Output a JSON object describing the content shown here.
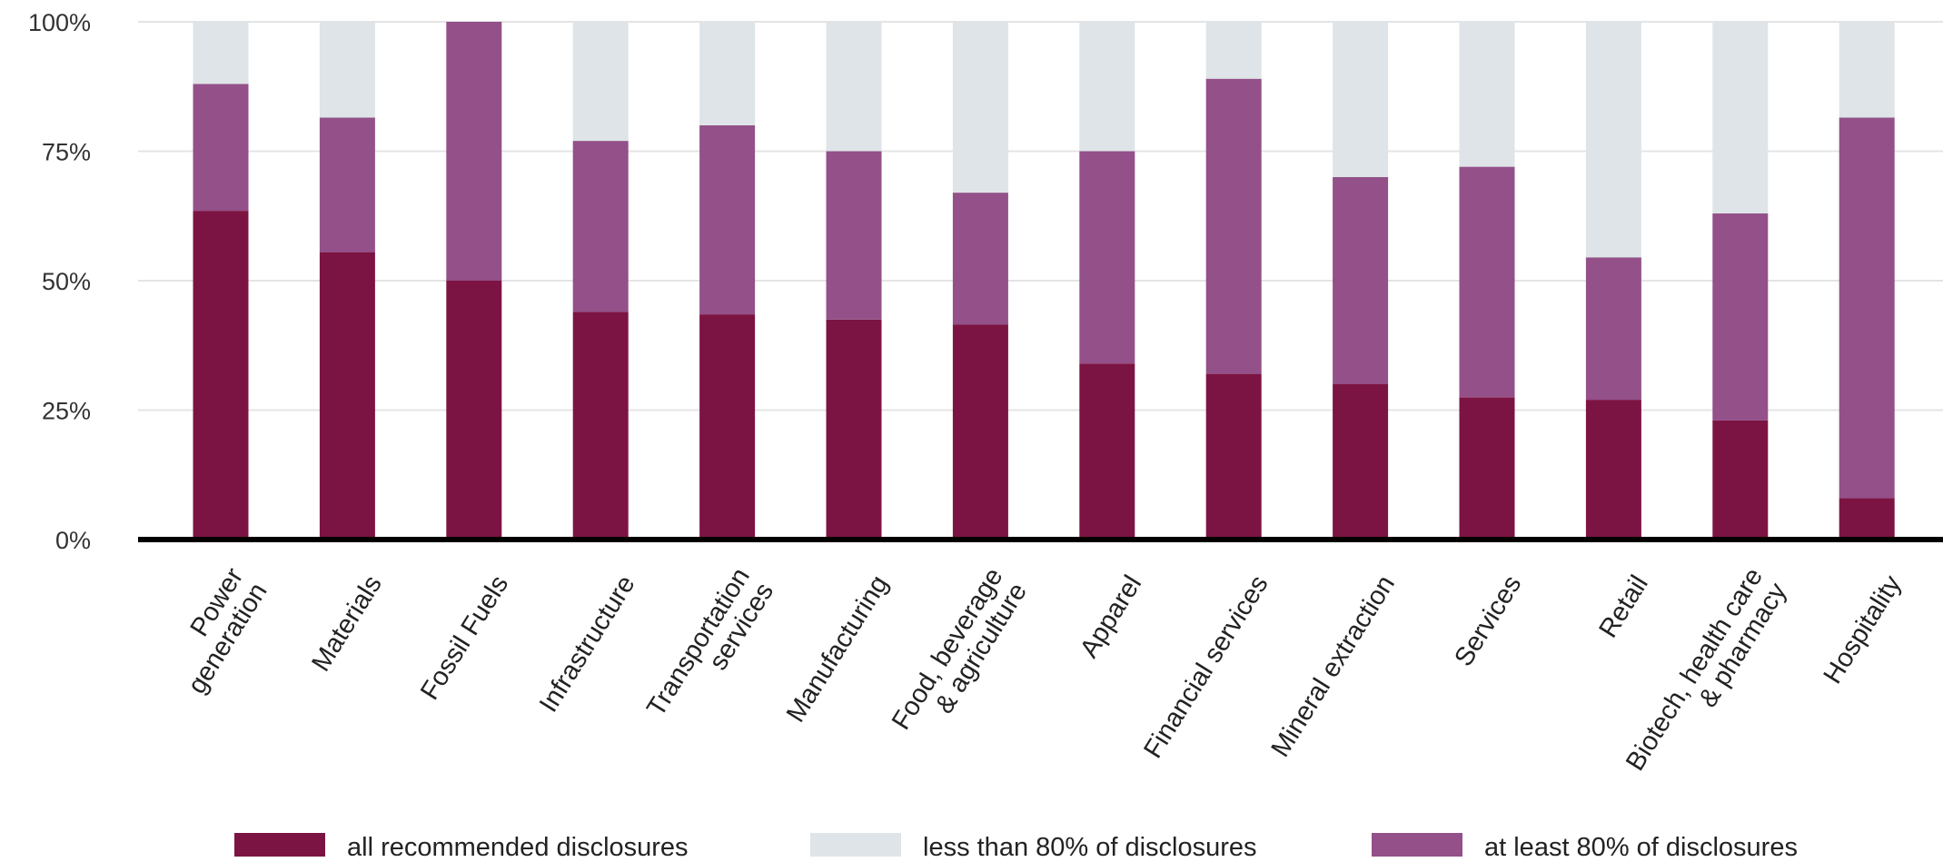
{
  "chart_data": {
    "type": "bar",
    "stacked": true,
    "title": "",
    "xlabel": "",
    "ylabel": "",
    "ylim": [
      0,
      100
    ],
    "yticks": [
      "0%",
      "25%",
      "50%",
      "75%",
      "100%"
    ],
    "grid": true,
    "legend_position": "bottom",
    "categories": [
      [
        "Power",
        "generation"
      ],
      [
        "Materials"
      ],
      [
        "Fossil Fuels"
      ],
      [
        "Infrastructure"
      ],
      [
        "Transportation",
        "services"
      ],
      [
        "Manufacturing"
      ],
      [
        "Food, beverage",
        "& agriculture"
      ],
      [
        "Apparel"
      ],
      [
        "Financial services"
      ],
      [
        "Mineral extraction"
      ],
      [
        "Services"
      ],
      [
        "Retail"
      ],
      [
        "Biotech, health care",
        "& pharmacy"
      ],
      [
        "Hospitality"
      ]
    ],
    "series": [
      {
        "name": "all recommended disclosures",
        "color": "#7c1443",
        "values": [
          63.5,
          55.5,
          50,
          44,
          43.5,
          42.5,
          41.5,
          34,
          32,
          30,
          27.5,
          27,
          23,
          8
        ]
      },
      {
        "name": "at least 80% of disclosures",
        "color": "#935089",
        "values": [
          24.5,
          26,
          50,
          33,
          36.5,
          32.5,
          25.5,
          41,
          57,
          40,
          44.5,
          27.5,
          40,
          73.5
        ]
      },
      {
        "name": "less than 80% of disclosures",
        "color": "#dee4e7",
        "values": [
          12,
          18.5,
          0,
          23,
          20,
          25,
          33,
          25,
          11,
          30,
          28,
          45.5,
          37,
          18.5
        ]
      }
    ],
    "legend_order": [
      "all recommended disclosures",
      "less than 80% of disclosures",
      "at least 80% of disclosures"
    ]
  }
}
